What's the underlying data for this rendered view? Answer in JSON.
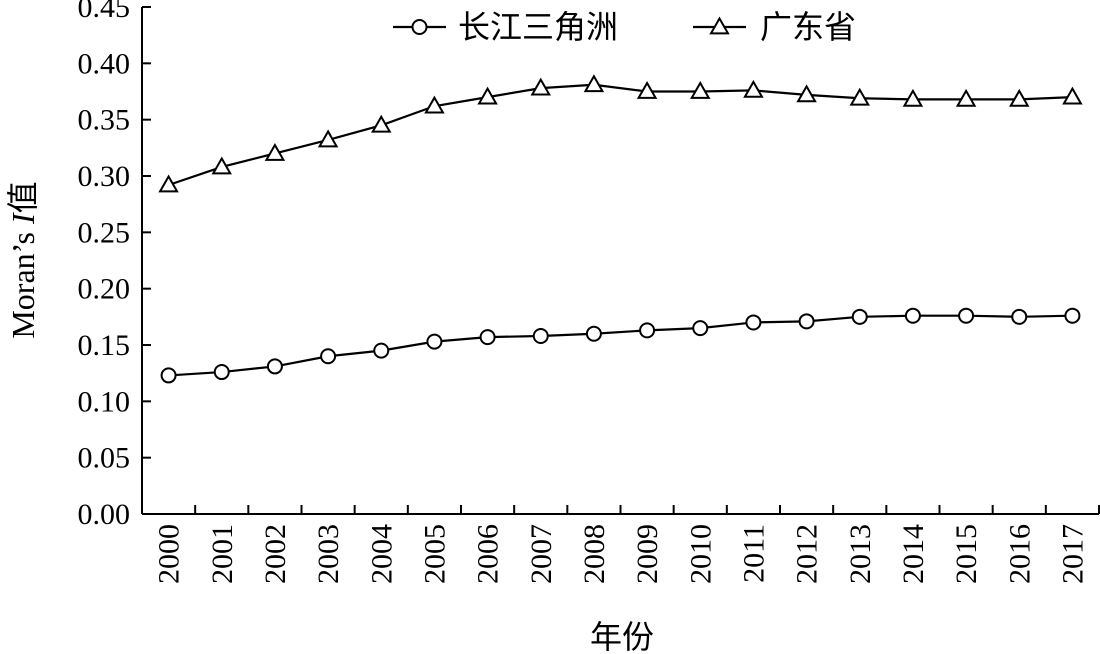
{
  "chart_data": {
    "type": "line",
    "title": "",
    "xlabel": "年份",
    "ylabel": {
      "prefix": "Moran’s ",
      "italic": "I",
      "suffix": "值"
    },
    "ylim": [
      0,
      0.45
    ],
    "yticks": [
      "0.00",
      "0.05",
      "0.10",
      "0.15",
      "0.20",
      "0.25",
      "0.30",
      "0.35",
      "0.40",
      "0.45"
    ],
    "categories": [
      "2000",
      "2001",
      "2002",
      "2003",
      "2004",
      "2005",
      "2006",
      "2007",
      "2008",
      "2009",
      "2010",
      "2011",
      "2012",
      "2013",
      "2014",
      "2015",
      "2016",
      "2017"
    ],
    "legend_position": "top-center",
    "grid": false,
    "series": [
      {
        "name": "长江三角洲",
        "marker": "circle",
        "values": [
          0.123,
          0.126,
          0.131,
          0.14,
          0.145,
          0.153,
          0.157,
          0.158,
          0.16,
          0.163,
          0.165,
          0.17,
          0.171,
          0.175,
          0.176,
          0.176,
          0.175,
          0.176
        ]
      },
      {
        "name": "广东省",
        "marker": "triangle",
        "values": [
          0.292,
          0.308,
          0.32,
          0.332,
          0.345,
          0.362,
          0.37,
          0.378,
          0.381,
          0.375,
          0.375,
          0.376,
          0.372,
          0.369,
          0.368,
          0.368,
          0.368,
          0.37
        ]
      }
    ]
  }
}
